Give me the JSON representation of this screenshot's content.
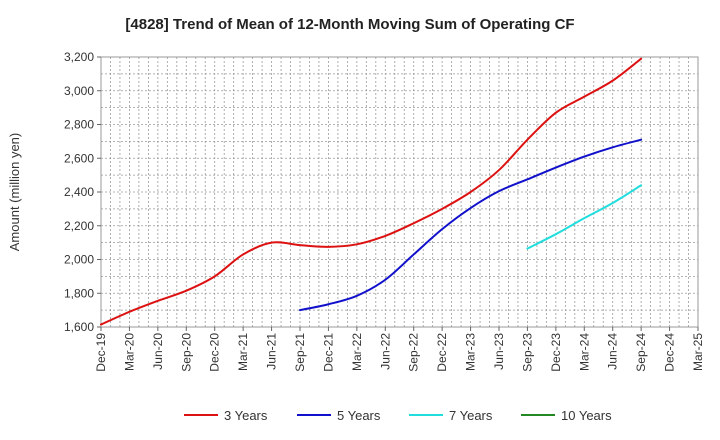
{
  "chart_data": {
    "type": "line",
    "title": "[4828]  Trend of Mean of 12-Month Moving Sum of Operating CF",
    "xlabel": "",
    "ylabel": "Amount (million yen)",
    "ylim": [
      1600,
      3200
    ],
    "yticks": [
      "1,600",
      "1,800",
      "2,000",
      "2,200",
      "2,400",
      "2,600",
      "2,800",
      "3,000",
      "3,200"
    ],
    "ytick_values": [
      1600,
      1800,
      2000,
      2200,
      2400,
      2600,
      2800,
      3000,
      3200
    ],
    "categories": [
      "Dec-19",
      "Mar-20",
      "Jun-20",
      "Sep-20",
      "Dec-20",
      "Mar-21",
      "Jun-21",
      "Sep-21",
      "Dec-21",
      "Mar-22",
      "Jun-22",
      "Sep-22",
      "Dec-22",
      "Mar-23",
      "Jun-23",
      "Sep-23",
      "Dec-23",
      "Mar-24",
      "Jun-24",
      "Sep-24",
      "Dec-24",
      "Mar-25"
    ],
    "grid": true,
    "legend_position": "bottom",
    "series": [
      {
        "name": "3 Years",
        "color": "#dd1111",
        "values": [
          1615,
          1690,
          1755,
          1815,
          1900,
          2030,
          2100,
          2085,
          2075,
          2090,
          2140,
          2215,
          2300,
          2400,
          2530,
          2710,
          2870,
          2965,
          3060,
          3190,
          null,
          null
        ]
      },
      {
        "name": "5 Years",
        "color": "#1111cc",
        "values": [
          null,
          null,
          null,
          null,
          null,
          null,
          null,
          1700,
          1735,
          1785,
          1880,
          2030,
          2180,
          2305,
          2405,
          2475,
          2545,
          2610,
          2665,
          2710,
          null,
          null
        ]
      },
      {
        "name": "7 Years",
        "color": "#22dddd",
        "values": [
          null,
          null,
          null,
          null,
          null,
          null,
          null,
          null,
          null,
          null,
          null,
          null,
          null,
          null,
          null,
          2065,
          2150,
          2245,
          2335,
          2440,
          null,
          null
        ]
      },
      {
        "name": "10 Years",
        "color": "#228822",
        "values": [
          null,
          null,
          null,
          null,
          null,
          null,
          null,
          null,
          null,
          null,
          null,
          null,
          null,
          null,
          null,
          null,
          null,
          null,
          null,
          null,
          null,
          null
        ]
      }
    ]
  }
}
